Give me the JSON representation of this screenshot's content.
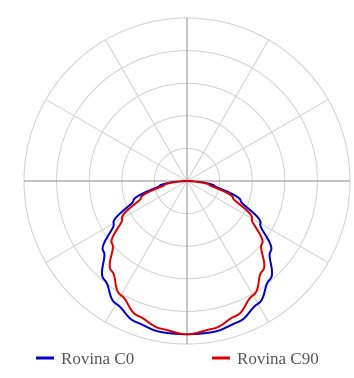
{
  "chart_data": {
    "type": "line",
    "subtype": "polar-luminous-intensity",
    "angular_axis": {
      "spoke_step_deg": 30,
      "rotation": "0 deg points downward",
      "tick_labels": []
    },
    "radial_axis": {
      "rings": 5,
      "range": [
        0,
        1
      ],
      "tick_labels": []
    },
    "grid": true,
    "legend": "bottom",
    "series": [
      {
        "name": "Rovina C0",
        "color": "#0000cc",
        "points": [
          {
            "angle": 0,
            "r": 0.94
          },
          {
            "angle": 10,
            "r": 0.94
          },
          {
            "angle": 20,
            "r": 0.92
          },
          {
            "angle": 30,
            "r": 0.87
          },
          {
            "angle": 40,
            "r": 0.79
          },
          {
            "angle": 50,
            "r": 0.67
          },
          {
            "angle": 60,
            "r": 0.52
          },
          {
            "angle": 70,
            "r": 0.35
          },
          {
            "angle": 80,
            "r": 0.17
          },
          {
            "angle": 90,
            "r": 0.01
          }
        ]
      },
      {
        "name": "Rovina C90",
        "color": "#dd0000",
        "points": [
          {
            "angle": 0,
            "r": 0.94
          },
          {
            "angle": 10,
            "r": 0.92
          },
          {
            "angle": 20,
            "r": 0.88
          },
          {
            "angle": 30,
            "r": 0.81
          },
          {
            "angle": 40,
            "r": 0.72
          },
          {
            "angle": 50,
            "r": 0.6
          },
          {
            "angle": 60,
            "r": 0.46
          },
          {
            "angle": 70,
            "r": 0.3
          },
          {
            "angle": 80,
            "r": 0.14
          },
          {
            "angle": 90,
            "r": 0.0
          }
        ]
      }
    ]
  }
}
